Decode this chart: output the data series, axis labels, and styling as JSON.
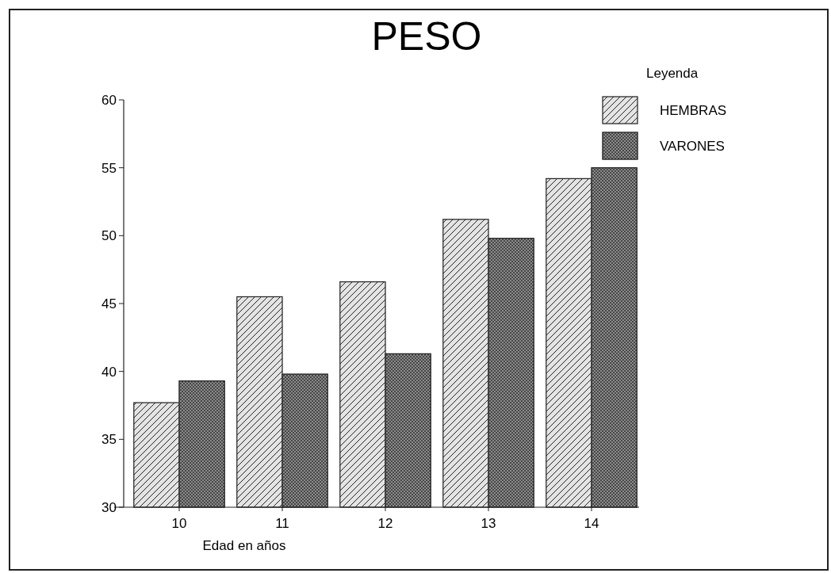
{
  "chart_data": {
    "type": "bar",
    "title": "PESO",
    "xlabel": "Edad en años",
    "legend_title": "Leyenda",
    "categories": [
      "10",
      "11",
      "12",
      "13",
      "14"
    ],
    "series": [
      {
        "name": "HEMBRAS",
        "color": "#e4e4e4",
        "values": [
          37.7,
          45.5,
          46.6,
          51.2,
          54.2
        ]
      },
      {
        "name": "VARONES",
        "color": "#8c8c8c",
        "values": [
          39.3,
          39.8,
          41.3,
          49.8,
          55.0
        ]
      }
    ],
    "ylim": [
      30,
      60
    ],
    "yticks": [
      30,
      35,
      40,
      45,
      50,
      55,
      60
    ],
    "grid": false,
    "legend": "top right"
  }
}
